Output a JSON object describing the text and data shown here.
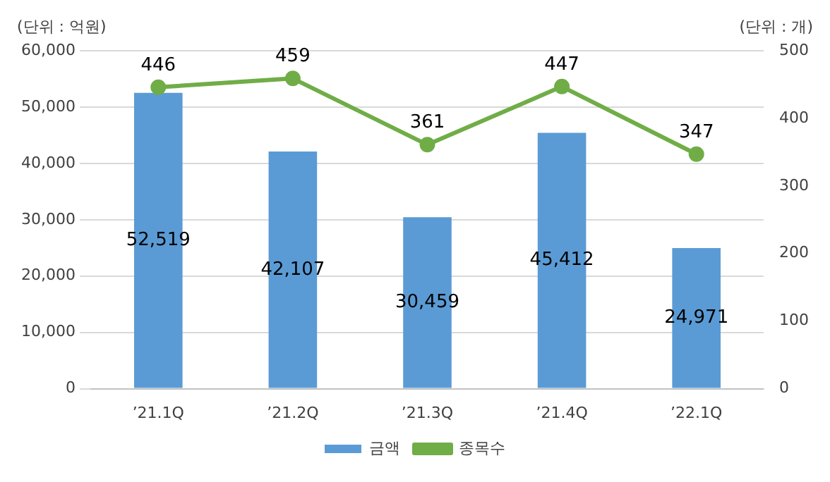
{
  "chart_data": {
    "type": "bar",
    "ylabel": "(단위 : 억원)",
    "y2label": "(단위 : 개)",
    "categories": [
      "’21.1Q",
      "’21.2Q",
      "’21.3Q",
      "’21.4Q",
      "’22.1Q"
    ],
    "series": [
      {
        "name": "금액",
        "color": "#5b9bd5",
        "values": [
          52519,
          42107,
          30459,
          45412,
          24971
        ],
        "value_labels": [
          "52,519",
          "42,107",
          "30,459",
          "45,412",
          "24,971"
        ]
      },
      {
        "name": "종목수",
        "type": "line",
        "axis": "y2",
        "color": "#70ad47",
        "values": [
          446,
          459,
          361,
          447,
          347
        ],
        "value_labels": [
          "446",
          "459",
          "361",
          "447",
          "347"
        ]
      }
    ],
    "ylim": [
      0,
      60000
    ],
    "yticks": [
      0,
      {
        "value": 10000,
        "label": "10,000"
      },
      {
        "value": 20000,
        "label": "20,000"
      },
      {
        "value": 30000,
        "label": "30,000"
      },
      {
        "value": 40000,
        "label": "40,000"
      },
      {
        "value": 50000,
        "label": "50,000"
      },
      {
        "value": 60000,
        "label": "60,000"
      }
    ],
    "y2lim": [
      0,
      500
    ],
    "y2ticks": [
      0,
      100,
      200,
      300,
      400,
      500
    ],
    "grid": "y",
    "legend": "bottom",
    "marker": "circle",
    "line_style": "solid"
  }
}
